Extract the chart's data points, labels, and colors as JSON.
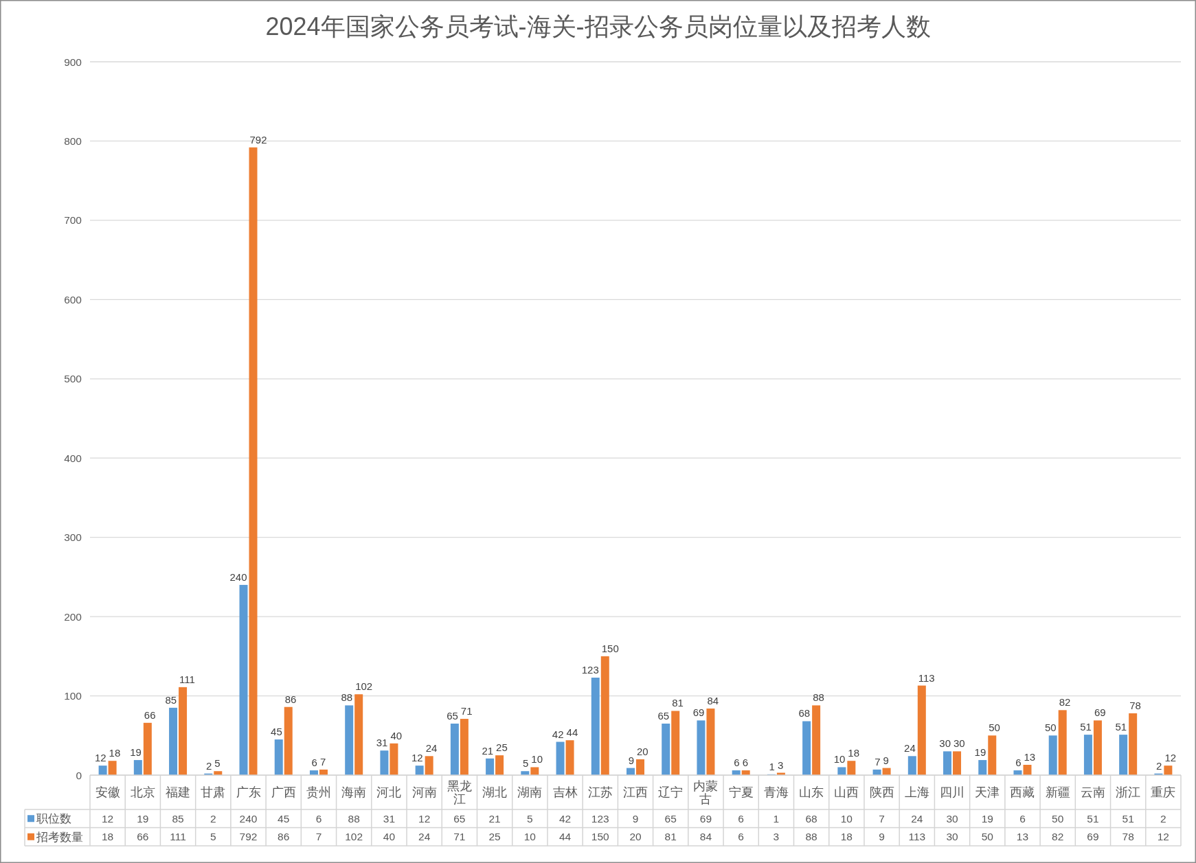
{
  "chart_data": {
    "type": "bar",
    "title": "2024年国家公务员考试-海关-招录公务员岗位量以及招考人数",
    "categories": [
      "安徽",
      "北京",
      "福建",
      "甘肃",
      "广东",
      "广西",
      "贵州",
      "海南",
      "河北",
      "河南",
      "黑龙江",
      "湖北",
      "湖南",
      "吉林",
      "江苏",
      "江西",
      "辽宁",
      "内蒙古",
      "宁夏",
      "青海",
      "山东",
      "山西",
      "陕西",
      "上海",
      "四川",
      "天津",
      "西藏",
      "新疆",
      "云南",
      "浙江",
      "重庆"
    ],
    "series": [
      {
        "name": "职位数",
        "color": "#5b9bd5",
        "values": [
          12,
          19,
          85,
          2,
          240,
          45,
          6,
          88,
          31,
          12,
          65,
          21,
          5,
          42,
          123,
          9,
          65,
          69,
          6,
          1,
          68,
          10,
          7,
          24,
          30,
          19,
          6,
          50,
          51,
          51,
          2
        ],
        "value_labels": [
          "12",
          "19",
          "85",
          "2",
          "240",
          "45",
          "6",
          "88",
          "31",
          "12",
          "65",
          "21",
          "5",
          "42",
          "123",
          "9",
          "65",
          "69",
          "6",
          "1",
          "68",
          "10",
          "7",
          "24",
          "30",
          "19",
          "6",
          "50",
          "51",
          "51",
          "2"
        ]
      },
      {
        "name": "招考数量",
        "color": "#ed7d31",
        "values": [
          18,
          66,
          111,
          5,
          792,
          86,
          7,
          102,
          40,
          24,
          71,
          25,
          10,
          44,
          150,
          20,
          81,
          84,
          6,
          3,
          88,
          18,
          9,
          113,
          30,
          50,
          13,
          82,
          69,
          78,
          12
        ],
        "value_labels": [
          "18",
          "66",
          "111",
          "5",
          "792",
          "86",
          "7",
          "102",
          "40",
          "24",
          "71",
          "25",
          "10",
          "44",
          "150",
          "20",
          "81",
          "84",
          "6",
          "3",
          "88",
          "18",
          "9",
          "113",
          "30",
          "50",
          "13",
          "82",
          "69",
          "78",
          "12"
        ]
      }
    ],
    "ylim": [
      0,
      900
    ],
    "yticks": [
      0,
      100,
      200,
      300,
      400,
      500,
      600,
      700,
      800,
      900
    ],
    "grid": "y",
    "legend": "bottom",
    "data_labels": true
  }
}
